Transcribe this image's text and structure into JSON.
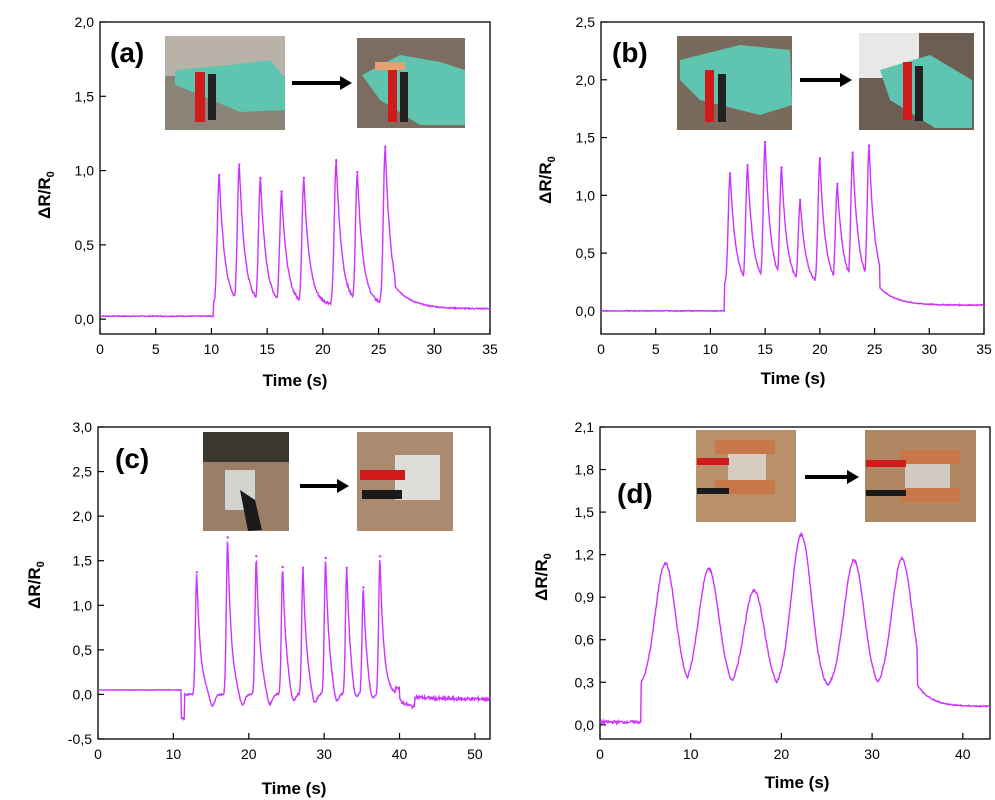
{
  "figure": {
    "panels_count": 4,
    "line_color": "#cc33ff",
    "axis_color": "#000000",
    "arrow_color": "#000000"
  },
  "chart_data": [
    {
      "type": "line",
      "panel_label": "(a)",
      "xlabel": "Time (s)",
      "ylabel": "ΔR/R0",
      "ylabel_main": "ΔR/R",
      "ylabel_sub": "0",
      "xlim": [
        0,
        35
      ],
      "ylim": [
        -0.1,
        2.0
      ],
      "x_ticks": [
        "0",
        "5",
        "10",
        "15",
        "20",
        "25",
        "30",
        "35"
      ],
      "y_ticks": [
        "0,0",
        "0,5",
        "1,0",
        "1,5",
        "2,0"
      ],
      "x_tick_values": [
        0,
        5,
        10,
        15,
        20,
        25,
        30,
        35
      ],
      "y_tick_values": [
        0,
        0.5,
        1.0,
        1.5,
        2.0
      ],
      "inset_images": [
        "finger-straight-photo",
        "finger-bent-photo"
      ],
      "baseline_before": 0.02,
      "baseline_after": 0.07,
      "onset": 10.2,
      "end": 26.5,
      "peaks": [
        [
          10.7,
          0.97
        ],
        [
          12.5,
          1.04
        ],
        [
          14.4,
          0.95
        ],
        [
          16.3,
          0.86
        ],
        [
          18.3,
          0.95
        ],
        [
          21.2,
          1.07
        ],
        [
          23.1,
          0.99
        ],
        [
          25.6,
          1.16
        ]
      ]
    },
    {
      "type": "line",
      "panel_label": "(b)",
      "xlabel": "Time (s)",
      "ylabel": "ΔR/R0",
      "ylabel_main": "ΔR/R",
      "ylabel_sub": "0",
      "xlim": [
        0,
        35
      ],
      "ylim": [
        -0.2,
        2.5
      ],
      "x_ticks": [
        "0",
        "5",
        "10",
        "15",
        "20",
        "25",
        "30",
        "35"
      ],
      "y_ticks": [
        "0,0",
        "0,5",
        "1,0",
        "1,5",
        "2,0",
        "2,5"
      ],
      "x_tick_values": [
        0,
        5,
        10,
        15,
        20,
        25,
        30,
        35
      ],
      "y_tick_values": [
        0,
        0.5,
        1.0,
        1.5,
        2.0,
        2.5
      ],
      "inset_images": [
        "wrist-straight-photo",
        "wrist-bent-photo"
      ],
      "baseline_before": 0.0,
      "baseline_after": 0.05,
      "onset": 11.3,
      "end": 25.5,
      "peaks": [
        [
          11.8,
          1.19
        ],
        [
          13.4,
          1.26
        ],
        [
          15.0,
          1.46
        ],
        [
          16.5,
          1.24
        ],
        [
          18.2,
          0.96
        ],
        [
          20.0,
          1.32
        ],
        [
          21.6,
          1.1
        ],
        [
          23.0,
          1.37
        ],
        [
          24.5,
          1.43
        ]
      ]
    },
    {
      "type": "line",
      "panel_label": "(c)",
      "xlabel": "Time (s)",
      "ylabel": "ΔR/R0",
      "ylabel_main": "ΔR/R",
      "ylabel_sub": "0",
      "xlim": [
        0,
        52
      ],
      "ylim": [
        -0.5,
        3.0
      ],
      "x_ticks": [
        "0",
        "10",
        "20",
        "30",
        "40",
        "50"
      ],
      "y_ticks": [
        "-0,5",
        "0,0",
        "0,5",
        "1,0",
        "1,5",
        "2,0",
        "2,5",
        "3,0"
      ],
      "x_tick_values": [
        0,
        10,
        20,
        30,
        40,
        50
      ],
      "y_tick_values": [
        -0.5,
        0,
        0.5,
        1.0,
        1.5,
        2.0,
        2.5,
        3.0
      ],
      "inset_images": [
        "elbow-straight-photo",
        "elbow-bent-photo"
      ],
      "baseline_before": 0.05,
      "baseline_after": -0.05,
      "onset": 11.0,
      "end": 39.5,
      "peaks": [
        [
          13.1,
          1.37
        ],
        [
          17.2,
          1.76
        ],
        [
          21.0,
          1.55
        ],
        [
          24.5,
          1.43
        ],
        [
          27.2,
          1.42
        ],
        [
          30.2,
          1.53
        ],
        [
          33.0,
          1.42
        ],
        [
          35.2,
          1.2
        ],
        [
          37.4,
          1.55
        ]
      ]
    },
    {
      "type": "line",
      "panel_label": "(d)",
      "xlabel": "Time (s)",
      "ylabel": "ΔR/R0",
      "ylabel_main": "ΔR/R",
      "ylabel_sub": "0",
      "xlim": [
        0,
        43
      ],
      "ylim": [
        -0.1,
        2.1
      ],
      "x_ticks": [
        "0",
        "10",
        "20",
        "30",
        "40"
      ],
      "y_ticks": [
        "0,0",
        "0,3",
        "0,6",
        "0,9",
        "1,2",
        "1,5",
        "1,8",
        "2,1"
      ],
      "x_tick_values": [
        0,
        10,
        20,
        30,
        40
      ],
      "y_tick_values": [
        0,
        0.3,
        0.6,
        0.9,
        1.2,
        1.5,
        1.8,
        2.1
      ],
      "inset_images": [
        "throat-relaxed-photo",
        "throat-swallow-photo"
      ],
      "baseline_before": 0.02,
      "baseline_after": 0.13,
      "onset": 4.5,
      "end": 35.0,
      "peaks": [
        [
          7.2,
          1.14
        ],
        [
          12.0,
          1.1
        ],
        [
          17.0,
          0.95
        ],
        [
          22.2,
          1.34
        ],
        [
          28.0,
          1.16
        ],
        [
          33.3,
          1.17
        ]
      ]
    }
  ]
}
